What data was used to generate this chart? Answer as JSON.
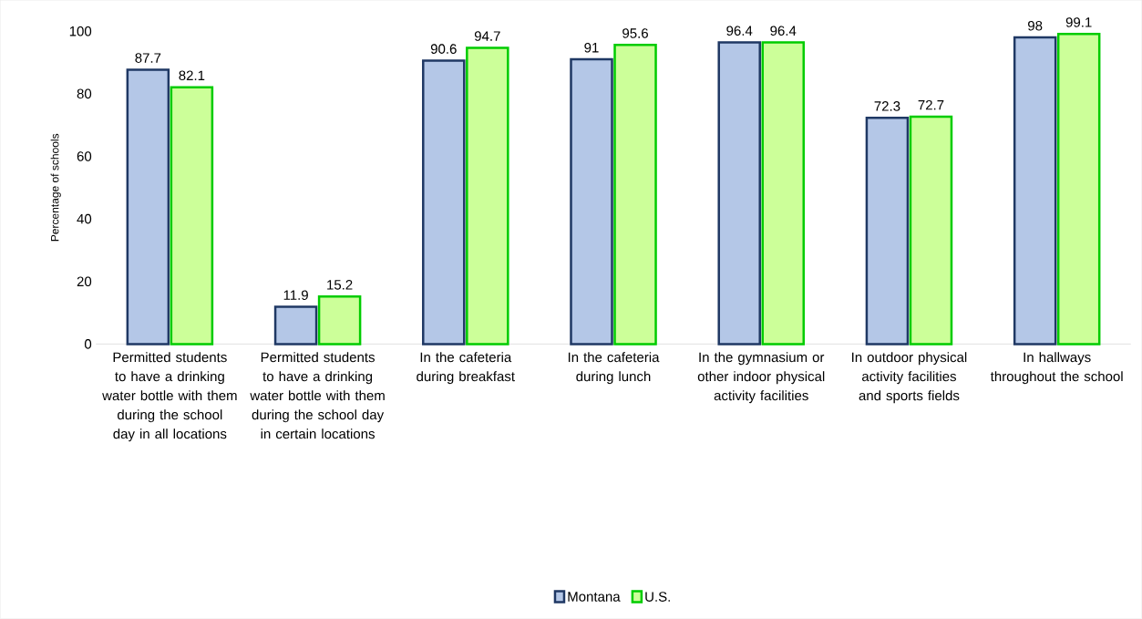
{
  "chart_data": {
    "type": "bar",
    "ylabel": "Percentage of schools",
    "categories": [
      "Permitted students to have a drinking water bottle with them during the school day in all locations",
      "Permitted students to have a drinking water bottle with them during the school day in certain locations",
      "In the cafeteria during breakfast",
      "In the cafeteria during lunch",
      "In the gymnasium or other indoor physical activity facilities",
      "In outdoor physical activity facilities and sports fields",
      "In hallways throughout the school"
    ],
    "series": [
      {
        "name": "Montana",
        "color": "#b4c7e7",
        "values": [
          87.7,
          11.9,
          90.6,
          91,
          96.4,
          72.3,
          98
        ]
      },
      {
        "name": "U.S.",
        "color": "#ccff99",
        "values": [
          82.1,
          15.2,
          94.7,
          95.6,
          96.4,
          72.7,
          99.1
        ]
      }
    ],
    "ylim": [
      0,
      100
    ],
    "yticks": [
      0,
      20,
      40,
      60,
      80,
      100
    ],
    "legend": "bottom",
    "data_labels": true
  }
}
